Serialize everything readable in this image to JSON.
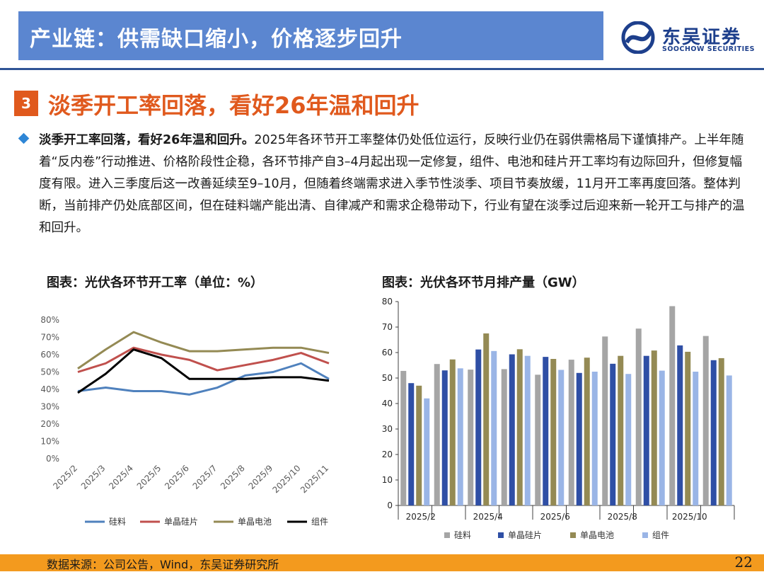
{
  "header": {
    "title": "产业链：供需缺口缩小，价格逐步回升",
    "logo_cn": "东吴证券",
    "logo_en": "SOOCHOW SECURITIES"
  },
  "section": {
    "number": "3",
    "title": "淡季开工率回落，看好26年温和回升"
  },
  "paragraph": {
    "lead": "淡季开工率回落，看好26年温和回升。",
    "body": "2025年各环节开工率整体仍处低位运行，反映行业仍在弱供需格局下谨慎排产。上半年随着“反内卷”行动推进、价格阶段性企稳，各环节排产自3–4月起出现一定修复，组件、电池和硅片开工率均有边际回升，但修复幅度有限。进入三季度后这一改善延续至9–10月，但随着终端需求进入季节性淡季、项目节奏放缓，11月开工率再度回落。整体判断，当前排产仍处底部区间，但在硅料端产能出清、自律减产和需求企稳带动下，行业有望在淡季过后迎来新一轮开工与排产的温和回升。"
  },
  "chart_data": [
    {
      "type": "line",
      "title": "图表：光伏各环节开工率（单位：%）",
      "categories": [
        "2025/2",
        "2025/3",
        "2025/4",
        "2025/5",
        "2025/6",
        "2025/7",
        "2025/8",
        "2025/9",
        "2025/10",
        "2025/11"
      ],
      "ylim": [
        0,
        80
      ],
      "yticks": [
        0,
        10,
        20,
        30,
        40,
        50,
        60,
        70,
        80
      ],
      "ytick_labels": [
        "0%",
        "10%",
        "20%",
        "30%",
        "40%",
        "50%",
        "60%",
        "70%",
        "80%"
      ],
      "legend_position": "bottom",
      "series": [
        {
          "name": "硅料",
          "color": "#4f81bd",
          "values": [
            39,
            41,
            39,
            39,
            37,
            41,
            48,
            50,
            55,
            46
          ]
        },
        {
          "name": "单晶硅片",
          "color": "#c0504d",
          "values": [
            50,
            55,
            64,
            60,
            57,
            51,
            54,
            57,
            61,
            55
          ]
        },
        {
          "name": "单晶电池",
          "color": "#948a54",
          "values": [
            52,
            63,
            73,
            67,
            62,
            62,
            63,
            64,
            64,
            61
          ]
        },
        {
          "name": "组件",
          "color": "#000000",
          "values": [
            38,
            49,
            63,
            58,
            46,
            46,
            46,
            47,
            47,
            45
          ]
        }
      ]
    },
    {
      "type": "bar",
      "title": "图表：光伏各环节月排产量（GW）",
      "categories": [
        "2025/2",
        "2025/3",
        "2025/4",
        "2025/5",
        "2025/6",
        "2025/7",
        "2025/8",
        "2025/9",
        "2025/10",
        "2025/11"
      ],
      "xtick_labels": [
        "2025/2",
        "",
        "2025/4",
        "",
        "2025/6",
        "",
        "2025/8",
        "",
        "2025/10",
        ""
      ],
      "ylim": [
        0,
        80
      ],
      "yticks": [
        0,
        10,
        20,
        30,
        40,
        50,
        60,
        70,
        80
      ],
      "legend_position": "bottom",
      "series": [
        {
          "name": "硅料",
          "color": "#a5a5a5",
          "values": [
            52.8,
            55.5,
            53.3,
            53.5,
            51.3,
            57.2,
            66.3,
            69.4,
            78.2,
            66.5
          ]
        },
        {
          "name": "单晶硅片",
          "color": "#2f4fa5",
          "values": [
            48.0,
            53.0,
            61.2,
            59.3,
            58.3,
            52.0,
            55.6,
            58.7,
            62.8,
            57.0
          ]
        },
        {
          "name": "单晶电池",
          "color": "#948a54",
          "values": [
            47.0,
            57.3,
            67.5,
            61.3,
            57.5,
            58.0,
            58.7,
            60.8,
            60.3,
            57.8
          ]
        },
        {
          "name": "组件",
          "color": "#9ab5e6",
          "values": [
            42.0,
            53.8,
            60.6,
            58.7,
            53.2,
            52.5,
            51.6,
            52.9,
            52.5,
            51.0
          ]
        }
      ]
    }
  ],
  "footer": {
    "source": "数据来源：公司公告，Wind，东吴证券研究所",
    "page": "22"
  }
}
